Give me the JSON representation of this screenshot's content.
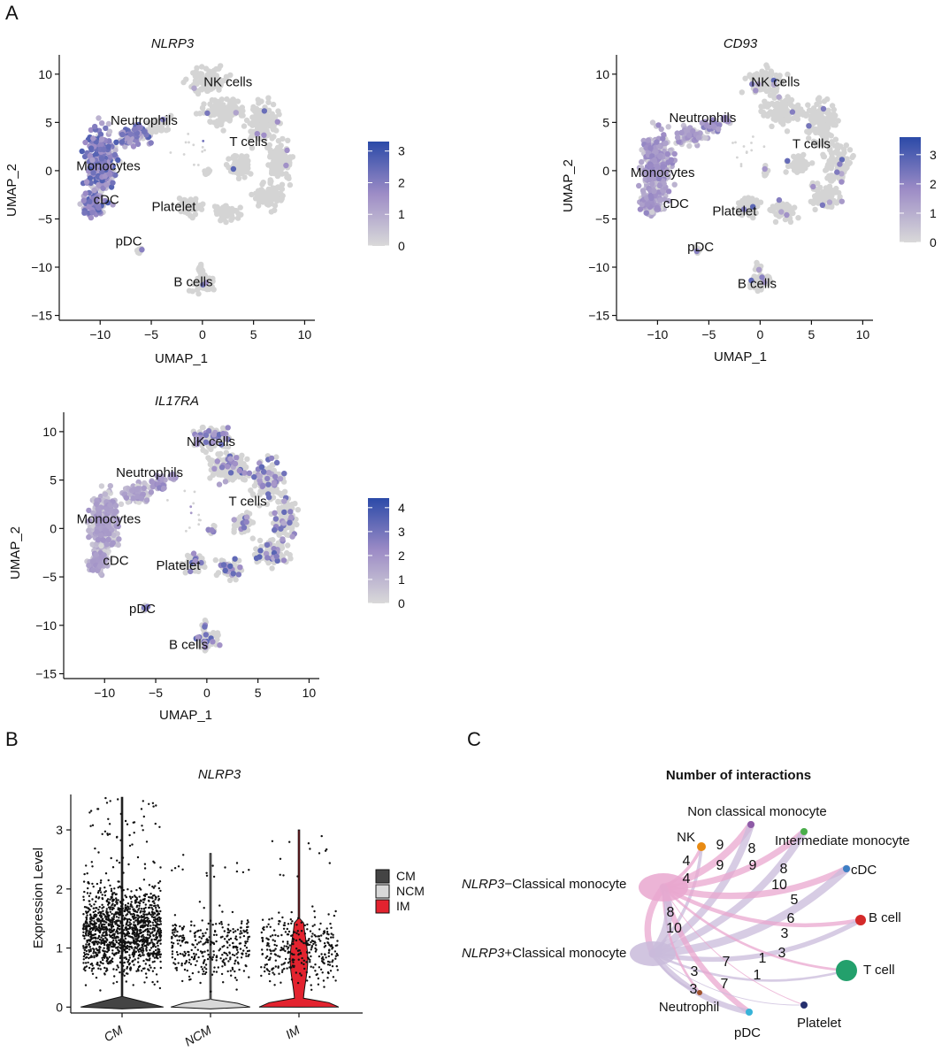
{
  "panels": {
    "A": "A",
    "B": "B",
    "C": "C"
  },
  "umap": {
    "xlabel": "UMAP_1",
    "ylabel": "UMAP_2",
    "clusters": [
      "NK cells",
      "T cells",
      "Neutrophils",
      "Monocytes",
      "cDC",
      "Platelet",
      "pDC",
      "B cells"
    ],
    "color_low": "#d9d9d9",
    "color_high": "#2b4aa8"
  },
  "chart_data": [
    {
      "type": "scatter",
      "title": "NLRP3",
      "xlabel": "UMAP_1",
      "ylabel": "UMAP_2",
      "xlim": [
        -14,
        11
      ],
      "ylim": [
        -15.5,
        12
      ],
      "xticks": [
        -10,
        -5,
        0,
        5,
        10
      ],
      "yticks": [
        10,
        5,
        0,
        -5,
        -10,
        -15
      ],
      "clusters": [
        {
          "name": "NK cells",
          "x": 2.5,
          "y": 9.2
        },
        {
          "name": "T cells",
          "x": 4.5,
          "y": 3.0
        },
        {
          "name": "Neutrophils",
          "x": -5.7,
          "y": 5.2
        },
        {
          "name": "Monocytes",
          "x": -9.2,
          "y": 0.5
        },
        {
          "name": "cDC",
          "x": -9.4,
          "y": -3.0
        },
        {
          "name": "Platelet",
          "x": -2.8,
          "y": -3.7
        },
        {
          "name": "pDC",
          "x": -7.2,
          "y": -7.3
        },
        {
          "name": "B cells",
          "x": -0.9,
          "y": -11.5
        }
      ],
      "colorbar": {
        "ticks": [
          3,
          2,
          1,
          0
        ],
        "max": 3.3
      }
    },
    {
      "type": "scatter",
      "title": "CD93",
      "xlabel": "UMAP_1",
      "ylabel": "UMAP_2",
      "xlim": [
        -14,
        11
      ],
      "ylim": [
        -15.5,
        12
      ],
      "xticks": [
        -10,
        -5,
        0,
        5,
        10
      ],
      "yticks": [
        10,
        5,
        0,
        -5,
        -10,
        -15
      ],
      "clusters": [
        {
          "name": "NK cells",
          "x": 1.5,
          "y": 9.2
        },
        {
          "name": "T cells",
          "x": 5.0,
          "y": 2.8
        },
        {
          "name": "Neutrophils",
          "x": -5.6,
          "y": 5.5
        },
        {
          "name": "Monocytes",
          "x": -9.5,
          "y": -0.2
        },
        {
          "name": "cDC",
          "x": -8.2,
          "y": -3.4
        },
        {
          "name": "Platelet",
          "x": -2.5,
          "y": -4.2
        },
        {
          "name": "pDC",
          "x": -5.8,
          "y": -7.9
        },
        {
          "name": "B cells",
          "x": -0.3,
          "y": -11.7
        }
      ],
      "colorbar": {
        "ticks": [
          3,
          2,
          1,
          0
        ],
        "max": 3.6
      }
    },
    {
      "type": "scatter",
      "title": "IL17RA",
      "xlabel": "UMAP_1",
      "ylabel": "UMAP_2",
      "xlim": [
        -14,
        11
      ],
      "ylim": [
        -15.5,
        12
      ],
      "xticks": [
        -10,
        -5,
        0,
        5,
        10
      ],
      "yticks": [
        10,
        5,
        0,
        -5,
        -10,
        -15
      ],
      "clusters": [
        {
          "name": "NK cells",
          "x": 0.4,
          "y": 9.0
        },
        {
          "name": "T cells",
          "x": 4.0,
          "y": 2.8
        },
        {
          "name": "Neutrophils",
          "x": -5.6,
          "y": 5.8
        },
        {
          "name": "Monocytes",
          "x": -9.6,
          "y": 1.0
        },
        {
          "name": "cDC",
          "x": -8.9,
          "y": -3.3
        },
        {
          "name": "Platelet",
          "x": -2.8,
          "y": -3.8
        },
        {
          "name": "pDC",
          "x": -6.3,
          "y": -8.3
        },
        {
          "name": "B cells",
          "x": -1.8,
          "y": -12.0
        }
      ],
      "colorbar": {
        "ticks": [
          4,
          3,
          2,
          1,
          0
        ],
        "max": 4.4
      }
    },
    {
      "type": "violin",
      "title": "NLRP3",
      "ylabel": "Expression Level",
      "ylim": [
        -0.1,
        3.6
      ],
      "yticks": [
        0,
        1,
        2,
        3
      ],
      "categories": [
        "CM",
        "NCM",
        "IM"
      ],
      "legend": [
        {
          "name": "CM",
          "color": "#444444"
        },
        {
          "name": "NCM",
          "color": "#d8d8d8"
        },
        {
          "name": "IM",
          "color": "#e3232f"
        }
      ],
      "series": [
        {
          "name": "CM",
          "max": 3.55,
          "body_max": 0.1,
          "points_low": 0.5,
          "points_high": 2.5
        },
        {
          "name": "NCM",
          "max": 2.6,
          "body_max": 0.05,
          "points_low": 0.4,
          "points_high": 2.0
        },
        {
          "name": "IM",
          "max": 3.0,
          "body_max": 1.45,
          "points_low": 0.4,
          "points_high": 2.0
        }
      ]
    },
    {
      "type": "network",
      "title": "Number of interactions",
      "nodes": [
        {
          "name": "NLRP3−Classical monocyte",
          "gene": "NLRP3",
          "suffix": "−Classical monocyte",
          "color": "#e9a7cf"
        },
        {
          "name": "NLRP3+Classical monocyte",
          "gene": "NLRP3",
          "suffix": "+Classical monocyte",
          "color": "#c9bbdb"
        },
        {
          "name": "NK",
          "color": "#e88a12"
        },
        {
          "name": "Non classical monocyte",
          "color": "#8e5aa6"
        },
        {
          "name": "Intermediate monocyte",
          "color": "#4aae4a"
        },
        {
          "name": "cDC",
          "color": "#3d7fc4"
        },
        {
          "name": "B cell",
          "color": "#d42a2a"
        },
        {
          "name": "T cell",
          "color": "#23a06c"
        },
        {
          "name": "Neutrophil",
          "color": "#a0522d"
        },
        {
          "name": "pDC",
          "color": "#37b3d8"
        },
        {
          "name": "Platelet",
          "color": "#25306e"
        }
      ],
      "edges": [
        {
          "from": "NLRP3−Classical monocyte",
          "to": "NK",
          "weight": 4
        },
        {
          "from": "NLRP3+Classical monocyte",
          "to": "NK",
          "weight": 4
        },
        {
          "from": "NLRP3−Classical monocyte",
          "to": "Non classical monocyte",
          "weight": 9
        },
        {
          "from": "NLRP3+Classical monocyte",
          "to": "Non classical monocyte",
          "weight": 9
        },
        {
          "from": "NLRP3−Classical monocyte",
          "to": "Intermediate monocyte",
          "weight": 8
        },
        {
          "from": "NLRP3+Classical monocyte",
          "to": "Intermediate monocyte",
          "weight": 9
        },
        {
          "from": "NLRP3−Classical monocyte",
          "to": "cDC",
          "weight": 8
        },
        {
          "from": "NLRP3+Classical monocyte",
          "to": "cDC",
          "weight": 10
        },
        {
          "from": "NLRP3−Classical monocyte",
          "to": "B cell",
          "weight": 5
        },
        {
          "from": "NLRP3+Classical monocyte",
          "to": "B cell",
          "weight": 6
        },
        {
          "from": "NLRP3−Classical monocyte",
          "to": "T cell",
          "weight": 3
        },
        {
          "from": "NLRP3+Classical monocyte",
          "to": "T cell",
          "weight": 3
        },
        {
          "from": "NLRP3−Classical monocyte",
          "to": "Neutrophil",
          "weight": 3
        },
        {
          "from": "NLRP3+Classical monocyte",
          "to": "Neutrophil",
          "weight": 3
        },
        {
          "from": "NLRP3−Classical monocyte",
          "to": "pDC",
          "weight": 7
        },
        {
          "from": "NLRP3+Classical monocyte",
          "to": "pDC",
          "weight": 7
        },
        {
          "from": "NLRP3−Classical monocyte",
          "to": "Platelet",
          "weight": 1
        },
        {
          "from": "NLRP3+Classical monocyte",
          "to": "Platelet",
          "weight": 1
        },
        {
          "from": "NLRP3−Classical monocyte",
          "to": "NLRP3+Classical monocyte",
          "weight": 8
        },
        {
          "from": "NLRP3+Classical monocyte",
          "to": "NLRP3−Classical monocyte",
          "weight": 10
        }
      ]
    }
  ]
}
